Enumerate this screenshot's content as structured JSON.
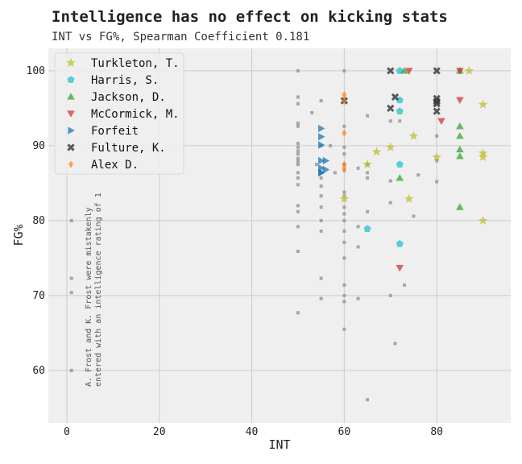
{
  "chart_data": {
    "type": "scatter",
    "title": "Intelligence has no effect on kicking stats",
    "subtitle": "INT vs FG%, Spearman Coefficient 0.181",
    "xlabel": "INT",
    "ylabel": "FG%",
    "xlim": [
      -4,
      96
    ],
    "ylim": [
      53,
      103
    ],
    "xticks": [
      0,
      20,
      40,
      60,
      80
    ],
    "yticks": [
      60,
      70,
      80,
      90,
      100
    ],
    "grid": true,
    "legend_position": "top-left",
    "annotation": [
      "A. Frost and K. Frost were mistakenly",
      "entered with an intelligence rating of 1"
    ],
    "background_points": {
      "color": "#999999",
      "marker": "square",
      "points": [
        [
          1,
          80
        ],
        [
          1,
          72.3
        ],
        [
          1,
          70.4
        ],
        [
          1,
          60
        ],
        [
          50,
          100
        ],
        [
          50,
          96.5
        ],
        [
          50,
          95.6
        ],
        [
          50,
          93
        ],
        [
          50,
          92.6
        ],
        [
          50,
          90.3
        ],
        [
          50,
          89.8
        ],
        [
          50,
          89.3
        ],
        [
          50,
          88.9
        ],
        [
          50,
          88.3
        ],
        [
          50,
          87.9
        ],
        [
          50,
          87.5
        ],
        [
          50,
          86.4
        ],
        [
          50,
          85.7
        ],
        [
          50,
          84.8
        ],
        [
          50,
          82
        ],
        [
          50,
          81.2
        ],
        [
          50,
          79.2
        ],
        [
          50,
          75.9
        ],
        [
          50,
          67.7
        ],
        [
          53,
          94.4
        ],
        [
          54,
          87.5
        ],
        [
          55,
          96
        ],
        [
          55,
          90
        ],
        [
          55,
          85.7
        ],
        [
          55,
          84.6
        ],
        [
          55,
          83.3
        ],
        [
          55,
          81.8
        ],
        [
          55,
          80
        ],
        [
          55,
          78.6
        ],
        [
          55,
          72.3
        ],
        [
          55,
          69.6
        ],
        [
          57,
          90
        ],
        [
          58,
          86.4
        ],
        [
          60,
          100
        ],
        [
          60,
          96.2
        ],
        [
          60,
          92.6
        ],
        [
          60,
          89.8
        ],
        [
          60,
          88.9
        ],
        [
          60,
          87.5
        ],
        [
          60,
          86.7
        ],
        [
          60,
          83.8
        ],
        [
          60,
          83.3
        ],
        [
          60,
          81.8
        ],
        [
          60,
          80.9
        ],
        [
          60,
          80
        ],
        [
          60,
          78.6
        ],
        [
          60,
          77.1
        ],
        [
          60,
          75
        ],
        [
          60,
          71.4
        ],
        [
          60,
          70
        ],
        [
          60,
          69.2
        ],
        [
          60,
          65.5
        ],
        [
          63,
          87
        ],
        [
          63,
          79.2
        ],
        [
          63,
          76.5
        ],
        [
          63,
          69.6
        ],
        [
          65,
          94
        ],
        [
          65,
          87.5
        ],
        [
          65,
          86.4
        ],
        [
          65,
          85.7
        ],
        [
          65,
          81.2
        ],
        [
          65,
          56.1
        ],
        [
          70,
          93.3
        ],
        [
          70,
          85.3
        ],
        [
          70,
          82.4
        ],
        [
          70,
          70
        ],
        [
          71,
          63.6
        ],
        [
          72,
          93.3
        ],
        [
          73,
          71.4
        ],
        [
          75,
          80.6
        ],
        [
          76,
          86.1
        ],
        [
          80,
          91.3
        ],
        [
          80,
          88
        ],
        [
          80,
          85.2
        ]
      ]
    },
    "series": [
      {
        "name": "Turkleton, T.",
        "marker": "star",
        "color": "#bcbd22",
        "points": [
          [
            60,
            82.9
          ],
          [
            65,
            87.5
          ],
          [
            67,
            89.2
          ],
          [
            70,
            89.8
          ],
          [
            74,
            82.9
          ],
          [
            75,
            91.3
          ],
          [
            80,
            88.5
          ],
          [
            87,
            100
          ],
          [
            90,
            95.5
          ],
          [
            90,
            89
          ],
          [
            90,
            88.5
          ],
          [
            90,
            80
          ]
        ]
      },
      {
        "name": "Harris, S.",
        "marker": "pentagon",
        "color": "#17becf",
        "points": [
          [
            65,
            78.9
          ],
          [
            72,
            100
          ],
          [
            72,
            96.1
          ],
          [
            72,
            94.6
          ],
          [
            72,
            87.5
          ],
          [
            72,
            76.9
          ]
        ]
      },
      {
        "name": "Jackson, D.",
        "marker": "triangle-up",
        "color": "#2ca02c",
        "points": [
          [
            73,
            100
          ],
          [
            72,
            85.7
          ],
          [
            85,
            100
          ],
          [
            85,
            92.6
          ],
          [
            85,
            91.3
          ],
          [
            85,
            89.5
          ],
          [
            85,
            88.6
          ],
          [
            85,
            81.8
          ]
        ]
      },
      {
        "name": "McCormick, M.",
        "marker": "triangle-down",
        "color": "#d62728",
        "points": [
          [
            74,
            100
          ],
          [
            85,
            100
          ],
          [
            85,
            96.1
          ],
          [
            81,
            93.3
          ],
          [
            72,
            73.7
          ]
        ]
      },
      {
        "name": "Forfeit",
        "marker": "triangle-right",
        "color": "#1f77b4",
        "points": [
          [
            55,
            92.3
          ],
          [
            55,
            91.2
          ],
          [
            55,
            90.1
          ],
          [
            55,
            88
          ],
          [
            56,
            88
          ],
          [
            55,
            87
          ],
          [
            56,
            86.8
          ],
          [
            55,
            86.4
          ],
          [
            55,
            86.4
          ]
        ]
      },
      {
        "name": "Fulture, K.",
        "marker": "x",
        "color": "#333333",
        "points": [
          [
            70,
            100
          ],
          [
            80,
            100
          ],
          [
            60,
            96
          ],
          [
            71,
            96.5
          ],
          [
            80,
            96.3
          ],
          [
            80,
            95.9
          ],
          [
            80,
            95.6
          ],
          [
            70,
            95
          ],
          [
            80,
            94.6
          ]
        ]
      },
      {
        "name": "Alex D.",
        "marker": "diamond",
        "color": "#ff7f0e",
        "points": [
          [
            60,
            96.8
          ],
          [
            60,
            96
          ],
          [
            60,
            91.7
          ],
          [
            60,
            87.5
          ],
          [
            60,
            87
          ]
        ]
      }
    ]
  }
}
